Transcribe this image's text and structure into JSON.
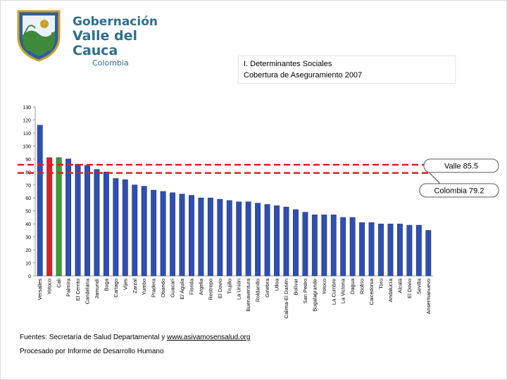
{
  "logo": {
    "line1": "Gobernación",
    "line2": "Valle del Cauca",
    "line3": "Colombia",
    "colors": {
      "text": "#2e6e8e",
      "shield_blue": "#2f5f9e",
      "shield_green": "#3f8a3a",
      "shield_gold": "#c9a227"
    }
  },
  "header": {
    "title": "I. Determinantes Sociales",
    "subtitle": "Cobertura de Aseguramiento 2007"
  },
  "chart_data": {
    "type": "bar",
    "title": "",
    "xlabel": "",
    "ylabel": "",
    "ylim": [
      0,
      130
    ],
    "yticks": [
      0,
      10,
      20,
      30,
      40,
      50,
      60,
      70,
      80,
      90,
      100,
      110,
      120,
      130
    ],
    "grid": false,
    "categories": [
      "Versalles",
      "Yotoco",
      "Cali",
      "Palmira",
      "El Cerrito",
      "Candelaria",
      "Jamundí",
      "Buga",
      "Cartago",
      "Vijes",
      "Zarzal",
      "Yumbo",
      "Pradera",
      "Obando",
      "Guacarí",
      "El Águila",
      "Florida",
      "Argelia",
      "Restrepo",
      "El Dovio",
      "Trujillo",
      "La Unión",
      "Buenaventura",
      "Roldanillo",
      "Ginebra",
      "Ulloa",
      "Calima-El Darién",
      "Bolívar",
      "San Pedro",
      "Bugalagrande",
      "Yotoco",
      "La Cumbre",
      "La Victoria",
      "Dagua",
      "Riofrío",
      "Caicedonia",
      "Toro",
      "Andalucía",
      "Alcalá",
      "El Dovio",
      "Sevilla",
      "Ansermanuevo"
    ],
    "values": [
      116,
      91,
      91,
      90,
      86,
      85,
      82,
      80,
      75,
      74,
      70,
      69,
      66,
      65,
      64,
      63,
      62,
      60,
      60,
      59,
      58,
      57,
      57,
      56,
      55,
      54,
      53,
      51,
      49,
      47,
      47,
      47,
      45,
      45,
      41,
      41,
      40,
      40,
      40,
      39,
      39,
      35
    ],
    "bar_colors": [
      "#2f4fb0",
      "#e02020",
      "#3aa02a",
      "#2f4fb0",
      "#2f4fb0",
      "#2f4fb0",
      "#2f4fb0",
      "#2f4fb0",
      "#2f4fb0",
      "#2f4fb0",
      "#2f4fb0",
      "#2f4fb0",
      "#2f4fb0",
      "#2f4fb0",
      "#2f4fb0",
      "#2f4fb0",
      "#2f4fb0",
      "#2f4fb0",
      "#2f4fb0",
      "#2f4fb0",
      "#2f4fb0",
      "#2f4fb0",
      "#2f4fb0",
      "#2f4fb0",
      "#2f4fb0",
      "#2f4fb0",
      "#2f4fb0",
      "#2f4fb0",
      "#2f4fb0",
      "#2f4fb0",
      "#2f4fb0",
      "#2f4fb0",
      "#2f4fb0",
      "#2f4fb0",
      "#2f4fb0",
      "#2f4fb0",
      "#2f4fb0",
      "#2f4fb0",
      "#2f4fb0",
      "#2f4fb0",
      "#2f4fb0",
      "#2f4fb0"
    ],
    "reference_lines": [
      {
        "label": "Valle 85.5",
        "value": 85.5,
        "color": "#e02020"
      },
      {
        "label": "Colombia 79.2",
        "value": 79.2,
        "color": "#e02020"
      }
    ]
  },
  "notes": {
    "source_prefix": "Fuentes: Secretaría de Salud Departamental y ",
    "source_link": "www.asivamosensalud.org",
    "processed": "Procesado por Informe de Desarrollo Humano"
  }
}
